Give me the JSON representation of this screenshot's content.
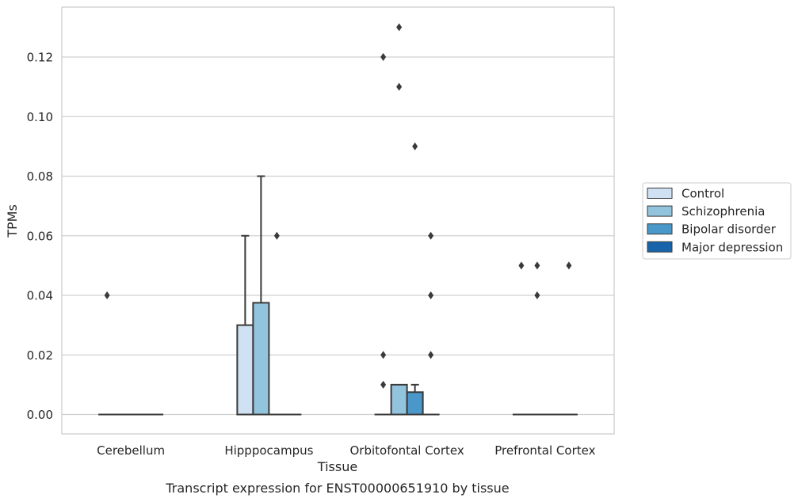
{
  "chart_data": {
    "type": "box",
    "xlabel": "Tissue",
    "ylabel": "TPMs",
    "caption": "Transcript expression for ENST00000651910 by tissue",
    "ylim": [
      -0.0065,
      0.1365
    ],
    "yticks": [
      0.0,
      0.02,
      0.04,
      0.06,
      0.08,
      0.1,
      0.12
    ],
    "ytick_labels": [
      "0.00",
      "0.02",
      "0.04",
      "0.06",
      "0.08",
      "0.10",
      "0.12"
    ],
    "grid": "horizontal",
    "legend_position": "right",
    "categories": [
      "Cerebellum",
      "Hipppocampus",
      "Orbitofontal Cortex",
      "Prefrontal Cortex"
    ],
    "series": [
      {
        "name": "Control",
        "color": "#cfe1f2",
        "boxes": [
          {
            "q1": 0,
            "median": 0,
            "q3": 0,
            "whisker_low": 0,
            "whisker_high": 0,
            "outliers": [
              0.04
            ]
          },
          {
            "q1": 0,
            "median": 0,
            "q3": 0.03,
            "whisker_low": 0,
            "whisker_high": 0.06,
            "outliers": []
          },
          {
            "q1": 0,
            "median": 0,
            "q3": 0,
            "whisker_low": 0,
            "whisker_high": 0,
            "outliers": [
              0.01,
              0.02,
              0.12
            ]
          },
          {
            "q1": 0,
            "median": 0,
            "q3": 0,
            "whisker_low": 0,
            "whisker_high": 0,
            "outliers": [
              0.05
            ]
          }
        ]
      },
      {
        "name": "Schizophrenia",
        "color": "#93c4de",
        "boxes": [
          {
            "q1": 0,
            "median": 0,
            "q3": 0,
            "whisker_low": 0,
            "whisker_high": 0,
            "outliers": []
          },
          {
            "q1": 0,
            "median": 0,
            "q3": 0.0375,
            "whisker_low": 0,
            "whisker_high": 0.08,
            "outliers": []
          },
          {
            "q1": 0,
            "median": 0,
            "q3": 0.01,
            "whisker_low": 0,
            "whisker_high": 0.01,
            "outliers": [
              0.11,
              0.13
            ]
          },
          {
            "q1": 0,
            "median": 0,
            "q3": 0,
            "whisker_low": 0,
            "whisker_high": 0,
            "outliers": [
              0.04,
              0.05
            ]
          }
        ]
      },
      {
        "name": "Bipolar disorder",
        "color": "#4a98c9",
        "boxes": [
          {
            "q1": 0,
            "median": 0,
            "q3": 0,
            "whisker_low": 0,
            "whisker_high": 0,
            "outliers": []
          },
          {
            "q1": 0,
            "median": 0,
            "q3": 0,
            "whisker_low": 0,
            "whisker_high": 0,
            "outliers": [
              0.06
            ]
          },
          {
            "q1": 0,
            "median": 0,
            "q3": 0.0075,
            "whisker_low": 0,
            "whisker_high": 0.01,
            "outliers": [
              0.09
            ]
          },
          {
            "q1": 0,
            "median": 0,
            "q3": 0,
            "whisker_low": 0,
            "whisker_high": 0,
            "outliers": []
          }
        ]
      },
      {
        "name": "Major depression",
        "color": "#1764ab",
        "boxes": [
          {
            "q1": 0,
            "median": 0,
            "q3": 0,
            "whisker_low": 0,
            "whisker_high": 0,
            "outliers": []
          },
          {
            "q1": 0,
            "median": 0,
            "q3": 0,
            "whisker_low": 0,
            "whisker_high": 0,
            "outliers": []
          },
          {
            "q1": 0,
            "median": 0,
            "q3": 0,
            "whisker_low": 0,
            "whisker_high": 0,
            "outliers": [
              0.02,
              0.04,
              0.06
            ]
          },
          {
            "q1": 0,
            "median": 0,
            "q3": 0,
            "whisker_low": 0,
            "whisker_high": 0,
            "outliers": [
              0.05
            ]
          }
        ]
      }
    ]
  }
}
